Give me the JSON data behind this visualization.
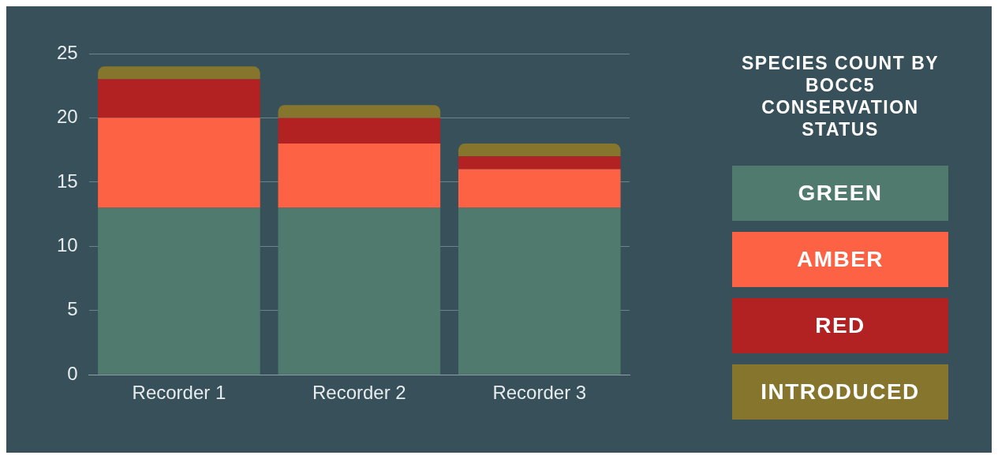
{
  "chart_data": {
    "type": "bar",
    "stacked": true,
    "legend_title": "SPECIES COUNT BY BOCC5 CONSERVATION STATUS",
    "legend": "right",
    "grid": "y",
    "categories": [
      "Recorder 1",
      "Recorder 2",
      "Recorder 3"
    ],
    "ylim": [
      0,
      25
    ],
    "yticks": [
      0,
      5,
      10,
      15,
      20,
      25
    ],
    "series": [
      {
        "name": "GREEN",
        "color": "#517a6f",
        "values": [
          13,
          13,
          13
        ]
      },
      {
        "name": "AMBER",
        "color": "#fe6244",
        "values": [
          7,
          5,
          3
        ]
      },
      {
        "name": "RED",
        "color": "#b22222",
        "values": [
          3,
          2,
          1
        ]
      },
      {
        "name": "INTRODUCED",
        "color": "#86752d",
        "values": [
          1,
          1,
          1
        ]
      }
    ]
  }
}
